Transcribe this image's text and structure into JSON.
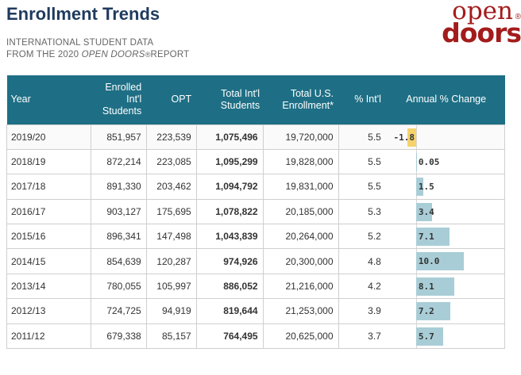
{
  "header": {
    "title": "Enrollment Trends",
    "subtitle_line1": "INTERNATIONAL STUDENT DATA",
    "subtitle_line2_pre": "FROM THE 2020 ",
    "subtitle_line2_italic": "OPEN DOORS",
    "subtitle_line2_reg": "®",
    "subtitle_line2_post": "REPORT"
  },
  "logo": {
    "word1": "open",
    "word2": "doors",
    "reg": "®"
  },
  "colors": {
    "header_bg": "#1e6f85",
    "bar_positive": "#a9cdd6",
    "bar_negative": "#f5d26b",
    "title": "#1f3b5e",
    "logo": "#a31c1c"
  },
  "chart_data": {
    "type": "table",
    "columns": [
      "Year",
      "Enrolled Int'l Students",
      "OPT",
      "Total Int'l Students",
      "Total U.S. Enrollment*",
      "% Int'l",
      "Annual % Change"
    ],
    "rows": [
      {
        "year": "2019/20",
        "enrolled": "851,957",
        "opt": "223,539",
        "total_intl": "1,075,496",
        "total_us": "19,720,000",
        "pct_intl": "5.5",
        "change_label": "-1.8",
        "change": -1.8
      },
      {
        "year": "2018/19",
        "enrolled": "872,214",
        "opt": "223,085",
        "total_intl": "1,095,299",
        "total_us": "19,828,000",
        "pct_intl": "5.5",
        "change_label": "0.05",
        "change": 0.05
      },
      {
        "year": "2017/18",
        "enrolled": "891,330",
        "opt": "203,462",
        "total_intl": "1,094,792",
        "total_us": "19,831,000",
        "pct_intl": "5.5",
        "change_label": "1.5",
        "change": 1.5
      },
      {
        "year": "2016/17",
        "enrolled": "903,127",
        "opt": "175,695",
        "total_intl": "1,078,822",
        "total_us": "20,185,000",
        "pct_intl": "5.3",
        "change_label": "3.4",
        "change": 3.4
      },
      {
        "year": "2015/16",
        "enrolled": "896,341",
        "opt": "147,498",
        "total_intl": "1,043,839",
        "total_us": "20,264,000",
        "pct_intl": "5.2",
        "change_label": "7.1",
        "change": 7.1
      },
      {
        "year": "2014/15",
        "enrolled": "854,639",
        "opt": "120,287",
        "total_intl": "974,926",
        "total_us": "20,300,000",
        "pct_intl": "4.8",
        "change_label": "10.0",
        "change": 10.0
      },
      {
        "year": "2013/14",
        "enrolled": "780,055",
        "opt": "105,997",
        "total_intl": "886,052",
        "total_us": "21,216,000",
        "pct_intl": "4.2",
        "change_label": "8.1",
        "change": 8.1
      },
      {
        "year": "2012/13",
        "enrolled": "724,725",
        "opt": "94,919",
        "total_intl": "819,644",
        "total_us": "21,253,000",
        "pct_intl": "3.9",
        "change_label": "7.2",
        "change": 7.2
      },
      {
        "year": "2011/12",
        "enrolled": "679,338",
        "opt": "85,157",
        "total_intl": "764,495",
        "total_us": "20,625,000",
        "pct_intl": "3.7",
        "change_label": "5.7",
        "change": 5.7
      }
    ]
  }
}
